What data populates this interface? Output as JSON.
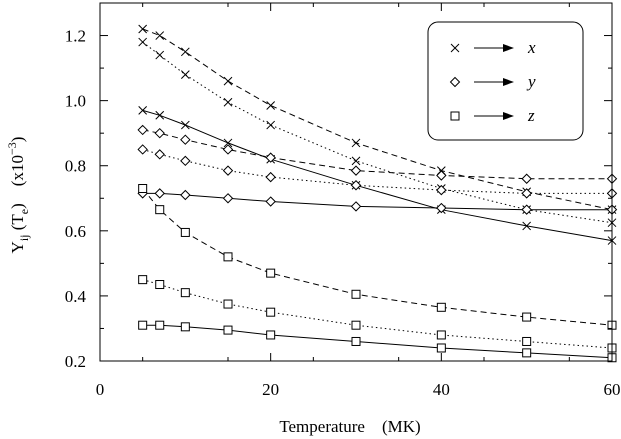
{
  "chart_data": {
    "type": "line",
    "xlabel": "Temperature    (MK)",
    "ylabel": {
      "main": "Y",
      "sub": "ij",
      "paren_open": " (T",
      "paren_sub": "e",
      "paren_close": ")",
      "unit_open": "(x10",
      "unit_exp": "−3",
      "unit_close": ")"
    },
    "xlim": [
      0,
      60
    ],
    "ylim": [
      0.2,
      1.3
    ],
    "x_ticks": [
      0,
      20,
      40,
      60
    ],
    "x_tick_labels": [
      "0",
      "20",
      "40",
      "60"
    ],
    "y_ticks": [
      0.2,
      0.4,
      0.6,
      0.8,
      1.0,
      1.2
    ],
    "y_tick_labels": [
      "0.2",
      "0.4",
      "0.6",
      "0.8",
      "1.0",
      "1.2"
    ],
    "grid": false,
    "legend": {
      "placement": "top-right",
      "entries": [
        {
          "marker": "x",
          "label": "x"
        },
        {
          "marker": "diamond",
          "label": "y"
        },
        {
          "marker": "square",
          "label": "z"
        }
      ]
    },
    "series": [
      {
        "marker": "x",
        "style": "dashed",
        "x": [
          5,
          7,
          10,
          15,
          20,
          30,
          40,
          50,
          60
        ],
        "y": [
          1.22,
          1.2,
          1.15,
          1.06,
          0.985,
          0.87,
          0.785,
          0.72,
          0.665
        ]
      },
      {
        "marker": "x",
        "style": "dotted",
        "x": [
          5,
          7,
          10,
          15,
          20,
          30,
          40,
          50,
          60
        ],
        "y": [
          1.18,
          1.14,
          1.08,
          0.995,
          0.925,
          0.815,
          0.73,
          0.665,
          0.625
        ]
      },
      {
        "marker": "x",
        "style": "solid",
        "x": [
          5,
          7,
          10,
          15,
          20,
          30,
          40,
          50,
          60
        ],
        "y": [
          0.97,
          0.955,
          0.925,
          0.87,
          0.82,
          0.74,
          0.665,
          0.615,
          0.57
        ]
      },
      {
        "marker": "diamond",
        "style": "dashed",
        "x": [
          5,
          7,
          10,
          15,
          20,
          30,
          40,
          50,
          60
        ],
        "y": [
          0.91,
          0.9,
          0.88,
          0.85,
          0.825,
          0.785,
          0.77,
          0.76,
          0.76
        ]
      },
      {
        "marker": "diamond",
        "style": "dotted",
        "x": [
          5,
          7,
          10,
          15,
          20,
          30,
          40,
          50,
          60
        ],
        "y": [
          0.85,
          0.835,
          0.815,
          0.785,
          0.765,
          0.74,
          0.725,
          0.715,
          0.715
        ]
      },
      {
        "marker": "diamond",
        "style": "solid",
        "x": [
          5,
          7,
          10,
          15,
          20,
          30,
          40,
          50,
          60
        ],
        "y": [
          0.715,
          0.715,
          0.71,
          0.7,
          0.69,
          0.675,
          0.67,
          0.665,
          0.665
        ]
      },
      {
        "marker": "square",
        "style": "dashed",
        "x": [
          5,
          7,
          10,
          15,
          20,
          30,
          40,
          50,
          60
        ],
        "y": [
          0.73,
          0.665,
          0.595,
          0.52,
          0.47,
          0.405,
          0.365,
          0.335,
          0.31
        ]
      },
      {
        "marker": "square",
        "style": "dotted",
        "x": [
          5,
          7,
          10,
          15,
          20,
          30,
          40,
          50,
          60
        ],
        "y": [
          0.45,
          0.435,
          0.41,
          0.375,
          0.35,
          0.31,
          0.28,
          0.26,
          0.24
        ]
      },
      {
        "marker": "square",
        "style": "solid",
        "x": [
          5,
          7,
          10,
          15,
          20,
          30,
          40,
          50,
          60
        ],
        "y": [
          0.31,
          0.31,
          0.305,
          0.295,
          0.28,
          0.26,
          0.24,
          0.225,
          0.21
        ]
      }
    ]
  }
}
